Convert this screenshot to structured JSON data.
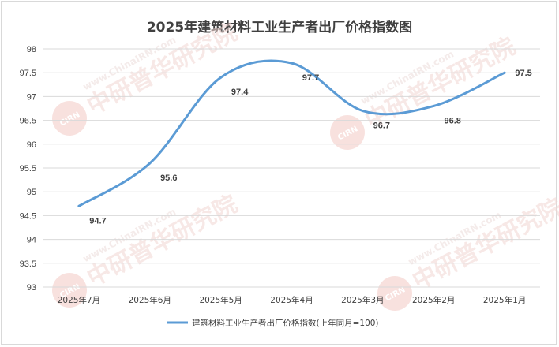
{
  "chart_data": {
    "type": "line",
    "title": "2025年建筑材料工业生产者出厂价格指数图",
    "categories": [
      "2025年7月",
      "2025年6月",
      "2025年5月",
      "2025年4月",
      "2025年3月",
      "2025年2月",
      "2025年1月"
    ],
    "series": [
      {
        "name": "建筑材料工业生产者出厂价格指数(上年同月=100)",
        "values": [
          94.7,
          95.6,
          97.4,
          97.7,
          96.7,
          96.8,
          97.5
        ]
      }
    ],
    "ylim": [
      93,
      98
    ],
    "yticks": [
      93,
      93.5,
      94,
      94.5,
      95,
      95.5,
      96,
      96.5,
      97,
      97.5,
      98
    ],
    "grid": true,
    "legend": "bottom",
    "smooth": true,
    "colors": {
      "line": "#5b9bd5",
      "grid": "#d9d9d9",
      "text": "#404040"
    }
  },
  "watermark": {
    "text": "中研普华研究院",
    "site": "www.ChinaIRN.com",
    "logo": "CIRN"
  }
}
